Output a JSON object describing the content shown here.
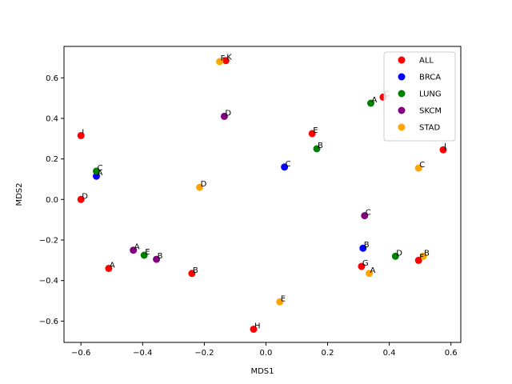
{
  "chart_data": {
    "type": "scatter",
    "xlabel": "MDS1",
    "ylabel": "MDS2",
    "xlim": [
      -0.655,
      0.632
    ],
    "ylim": [
      -0.705,
      0.755
    ],
    "xticks": [
      -0.6,
      -0.4,
      -0.2,
      0.0,
      0.2,
      0.4,
      0.6
    ],
    "yticks": [
      -0.6,
      -0.4,
      -0.2,
      0.0,
      0.2,
      0.4,
      0.6
    ],
    "xtick_labels": [
      "−0.6",
      "−0.4",
      "−0.2",
      "0.0",
      "0.2",
      "0.4",
      "0.6"
    ],
    "ytick_labels": [
      "−0.6",
      "−0.4",
      "−0.2",
      "0.0",
      "0.2",
      "0.4",
      "0.6"
    ],
    "grid": false,
    "legend_position": "top-right",
    "series": [
      {
        "name": "ALL",
        "color": "#ff0000",
        "points": [
          {
            "label": "I",
            "x": -0.6,
            "y": 0.315
          },
          {
            "label": "D",
            "x": -0.6,
            "y": 0.0
          },
          {
            "label": "A",
            "x": -0.51,
            "y": -0.34
          },
          {
            "label": "B",
            "x": -0.24,
            "y": -0.365
          },
          {
            "label": "K",
            "x": -0.13,
            "y": 0.685
          },
          {
            "label": "H",
            "x": -0.04,
            "y": -0.64
          },
          {
            "label": "E",
            "x": 0.15,
            "y": 0.325
          },
          {
            "label": "G",
            "x": 0.31,
            "y": -0.33
          },
          {
            "label": "C",
            "x": 0.38,
            "y": 0.505
          },
          {
            "label": "F",
            "x": 0.495,
            "y": -0.3
          },
          {
            "label": "J",
            "x": 0.575,
            "y": 0.245
          }
        ]
      },
      {
        "name": "BRCA",
        "color": "#0000ff",
        "points": [
          {
            "label": "A",
            "x": -0.55,
            "y": 0.115
          },
          {
            "label": "C",
            "x": 0.06,
            "y": 0.16
          },
          {
            "label": "B",
            "x": 0.315,
            "y": -0.24
          }
        ]
      },
      {
        "name": "LUNG",
        "color": "#008000",
        "points": [
          {
            "label": "C",
            "x": -0.55,
            "y": 0.14
          },
          {
            "label": "E",
            "x": -0.395,
            "y": -0.275
          },
          {
            "label": "B",
            "x": 0.165,
            "y": 0.25
          },
          {
            "label": "A",
            "x": 0.34,
            "y": 0.475
          },
          {
            "label": "D",
            "x": 0.42,
            "y": -0.28
          }
        ]
      },
      {
        "name": "SKCM",
        "color": "#800080",
        "points": [
          {
            "label": "A",
            "x": -0.43,
            "y": -0.25
          },
          {
            "label": "B",
            "x": -0.355,
            "y": -0.295
          },
          {
            "label": "D",
            "x": -0.135,
            "y": 0.41
          },
          {
            "label": "C",
            "x": 0.32,
            "y": -0.08
          }
        ]
      },
      {
        "name": "STAD",
        "color": "#ffa500",
        "points": [
          {
            "label": "F",
            "x": -0.15,
            "y": 0.68
          },
          {
            "label": "D",
            "x": -0.215,
            "y": 0.06
          },
          {
            "label": "E",
            "x": 0.045,
            "y": -0.505
          },
          {
            "label": "A",
            "x": 0.335,
            "y": -0.365
          },
          {
            "label": "B",
            "x": 0.51,
            "y": -0.28
          },
          {
            "label": "C",
            "x": 0.495,
            "y": 0.155
          }
        ]
      }
    ]
  }
}
